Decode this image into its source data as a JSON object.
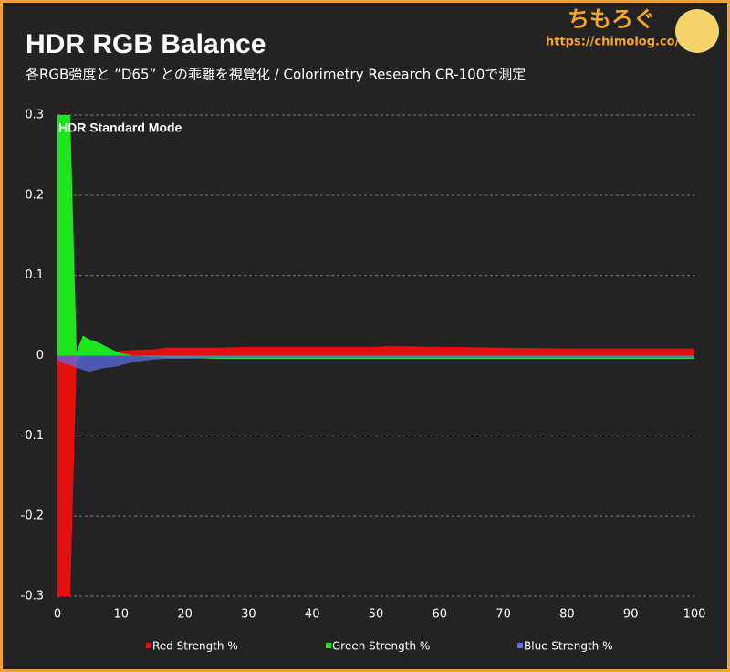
{
  "brand": {
    "name": "ちもろぐ",
    "url": "https://chimolog.co/"
  },
  "chart_data": {
    "type": "area",
    "title": "HDR RGB Balance",
    "subtitle": "各RGB強度と ”D65” との乖離を視覚化 / Colorimetry Research CR-100で測定",
    "annotation": "HDR Standard Mode",
    "x": [
      0,
      1,
      2,
      3,
      4,
      5,
      6,
      7,
      8,
      9,
      10,
      12,
      15,
      17,
      20,
      25,
      30,
      40,
      50,
      52,
      60,
      70,
      80,
      90,
      100
    ],
    "series": [
      {
        "name": "Red Strength %",
        "color": "#e41010",
        "values": [
          -0.3,
          -0.3,
          -0.3,
          -0.005,
          0.0,
          0.002,
          0.003,
          0.004,
          0.004,
          0.005,
          0.006,
          0.007,
          0.008,
          0.01,
          0.01,
          0.01,
          0.011,
          0.011,
          0.011,
          0.012,
          0.011,
          0.01,
          0.009,
          0.009,
          0.009
        ]
      },
      {
        "name": "Green Strength %",
        "color": "#1ee61e",
        "values": [
          0.3,
          0.3,
          0.3,
          0.005,
          0.025,
          0.02,
          0.018,
          0.014,
          0.01,
          0.006,
          0.003,
          0.0,
          -0.002,
          -0.003,
          -0.003,
          -0.004,
          -0.004,
          -0.004,
          -0.004,
          -0.004,
          -0.004,
          -0.004,
          -0.004,
          -0.004,
          -0.004
        ]
      },
      {
        "name": "Blue Strength %",
        "color": "#5a6ee0",
        "values": [
          -0.005,
          -0.01,
          -0.012,
          -0.015,
          -0.018,
          -0.02,
          -0.018,
          -0.016,
          -0.015,
          -0.014,
          -0.012,
          -0.008,
          -0.005,
          -0.004,
          -0.004,
          -0.003,
          -0.003,
          -0.003,
          -0.003,
          -0.003,
          -0.003,
          -0.003,
          -0.003,
          -0.003,
          -0.003
        ]
      }
    ],
    "xlim": [
      0,
      100
    ],
    "xticks": [
      0,
      10,
      20,
      30,
      40,
      50,
      60,
      70,
      80,
      90,
      100
    ],
    "ylim": [
      -0.3,
      0.3
    ],
    "yticks": [
      -0.3,
      -0.2,
      -0.1,
      0,
      0.1,
      0.2,
      0.3
    ],
    "grid": true,
    "legend": "bottom"
  }
}
